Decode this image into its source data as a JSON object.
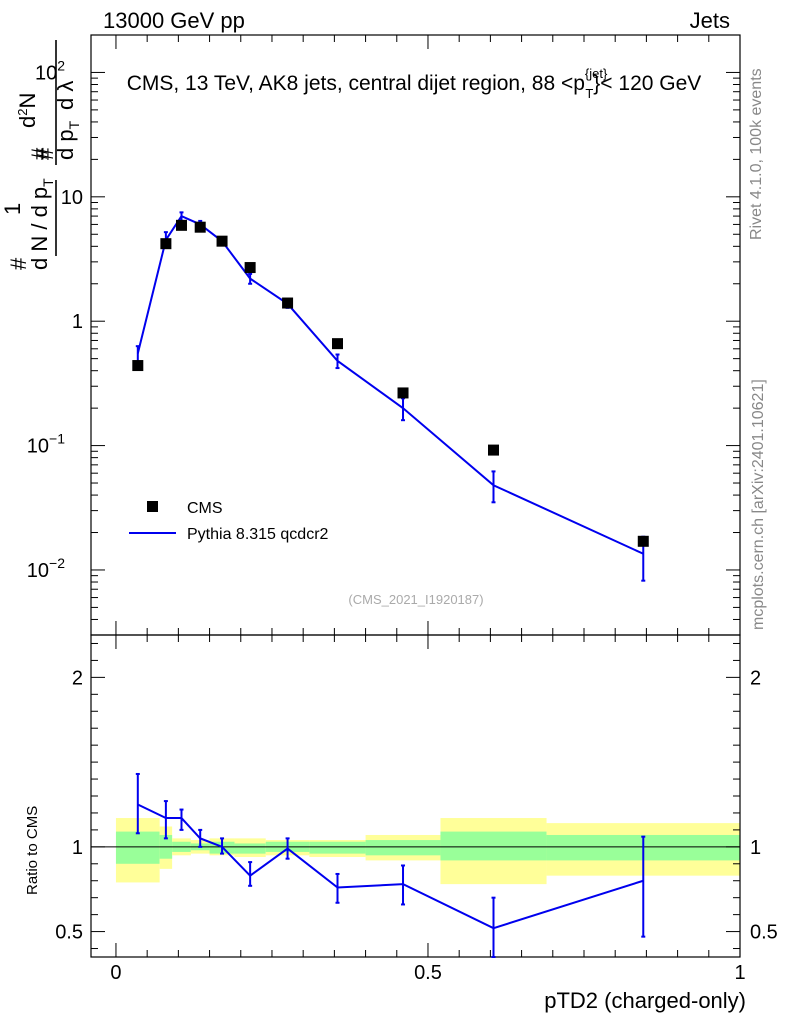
{
  "header": {
    "left": "13000 GeV pp",
    "right": "Jets"
  },
  "side_labels": {
    "rivet": "Rivet 4.1.0,  100k events",
    "mcplots": "mcplots.cern.ch [arXiv:2401.10621]"
  },
  "chart_data": {
    "type": "scatter",
    "title": "CMS, 13 TeV, AK8 jets, central dijet region, 88 <p_T^{jet}< 120 GeV",
    "analysis_tag": "(CMS_2021_I1920187)",
    "xlabel": "pTD2 (charged-only)",
    "ylabel": "1 / (dN/dp_T) · d²N/(dp_T dλ)",
    "xlim": [
      -0.04,
      1.0
    ],
    "ylim": [
      0.003,
      200
    ],
    "yscale": "log",
    "x_ticks": [
      {
        "v": 0,
        "label": "0"
      },
      {
        "v": 0.5,
        "label": "0.5"
      },
      {
        "v": 1,
        "label": "1"
      }
    ],
    "y_ticks": [
      {
        "v": 0.01,
        "base": "10",
        "exp": "−2"
      },
      {
        "v": 0.1,
        "base": "10",
        "exp": "−1"
      },
      {
        "v": 1,
        "label": "1"
      },
      {
        "v": 10,
        "label": "10"
      },
      {
        "v": 100,
        "base": "10",
        "exp": "2"
      }
    ],
    "legend": {
      "position": "lower-left",
      "entries": [
        "CMS",
        "Pythia 8.315 qcdcr2"
      ]
    },
    "series": [
      {
        "name": "CMS",
        "marker": "square",
        "color": "#000000",
        "x": [
          0.035,
          0.08,
          0.105,
          0.135,
          0.17,
          0.215,
          0.275,
          0.355,
          0.46,
          0.605,
          0.845
        ],
        "y": [
          0.44,
          4.2,
          5.9,
          5.7,
          4.4,
          2.7,
          1.4,
          0.66,
          0.265,
          0.092,
          0.017
        ]
      },
      {
        "name": "Pythia 8.315 qcdcr2",
        "marker": "line",
        "color": "#0000ee",
        "x": [
          0.035,
          0.08,
          0.105,
          0.135,
          0.17,
          0.215,
          0.275,
          0.355,
          0.46,
          0.605,
          0.845
        ],
        "y": [
          0.55,
          4.5,
          7.0,
          6.0,
          4.4,
          2.2,
          1.38,
          0.48,
          0.2,
          0.048,
          0.0135
        ],
        "err_lo": [
          0.47,
          3.9,
          6.4,
          5.6,
          4.1,
          2.0,
          1.28,
          0.42,
          0.16,
          0.035,
          0.0082
        ],
        "err_hi": [
          0.63,
          5.2,
          7.5,
          6.4,
          4.7,
          2.4,
          1.48,
          0.54,
          0.24,
          0.062,
          0.0185
        ]
      }
    ],
    "ratio": {
      "ylabel": "Ratio to CMS",
      "ylim": [
        0.35,
        2.25
      ],
      "ticks": [
        {
          "v": 0.5,
          "label": "0.5"
        },
        {
          "v": 1,
          "label": "1"
        },
        {
          "v": 2,
          "label": "2"
        }
      ],
      "bins": [
        {
          "lo": 0.0,
          "hi": 0.07,
          "g": [
            0.9,
            1.09
          ],
          "y": [
            0.79,
            1.17
          ]
        },
        {
          "lo": 0.07,
          "hi": 0.09,
          "g": [
            0.93,
            1.07
          ],
          "y": [
            0.87,
            1.12
          ]
        },
        {
          "lo": 0.09,
          "hi": 0.12,
          "g": [
            0.97,
            1.03
          ],
          "y": [
            0.95,
            1.05
          ]
        },
        {
          "lo": 0.12,
          "hi": 0.15,
          "g": [
            0.98,
            1.02
          ],
          "y": [
            0.96,
            1.04
          ]
        },
        {
          "lo": 0.15,
          "hi": 0.19,
          "g": [
            0.96,
            1.03
          ],
          "y": [
            0.95,
            1.05
          ]
        },
        {
          "lo": 0.19,
          "hi": 0.24,
          "g": [
            0.96,
            1.02
          ],
          "y": [
            0.94,
            1.05
          ]
        },
        {
          "lo": 0.24,
          "hi": 0.31,
          "g": [
            0.97,
            1.03
          ],
          "y": [
            0.95,
            1.04
          ]
        },
        {
          "lo": 0.31,
          "hi": 0.4,
          "g": [
            0.96,
            1.03
          ],
          "y": [
            0.94,
            1.04
          ]
        },
        {
          "lo": 0.4,
          "hi": 0.52,
          "g": [
            0.95,
            1.04
          ],
          "y": [
            0.92,
            1.07
          ]
        },
        {
          "lo": 0.52,
          "hi": 0.69,
          "g": [
            0.92,
            1.09
          ],
          "y": [
            0.78,
            1.17
          ]
        },
        {
          "lo": 0.69,
          "hi": 1.0,
          "g": [
            0.92,
            1.07
          ],
          "y": [
            0.83,
            1.14
          ]
        }
      ],
      "mc": {
        "x": [
          0.035,
          0.08,
          0.105,
          0.135,
          0.17,
          0.215,
          0.275,
          0.355,
          0.46,
          0.605,
          0.845
        ],
        "y": [
          1.25,
          1.17,
          1.17,
          1.05,
          1.0,
          0.83,
          0.99,
          0.76,
          0.78,
          0.52,
          0.8
        ],
        "err_lo": [
          1.08,
          1.05,
          1.1,
          1.0,
          0.96,
          0.77,
          0.93,
          0.67,
          0.66,
          0.35,
          0.47
        ],
        "err_hi": [
          1.43,
          1.27,
          1.22,
          1.1,
          1.05,
          0.91,
          1.05,
          0.84,
          0.89,
          0.7,
          1.06
        ]
      }
    }
  },
  "colors": {
    "band_green": "#99ff99",
    "band_yellow": "#ffff99",
    "mc": "#0000ee",
    "data": "#000000",
    "tag": "#999999"
  }
}
